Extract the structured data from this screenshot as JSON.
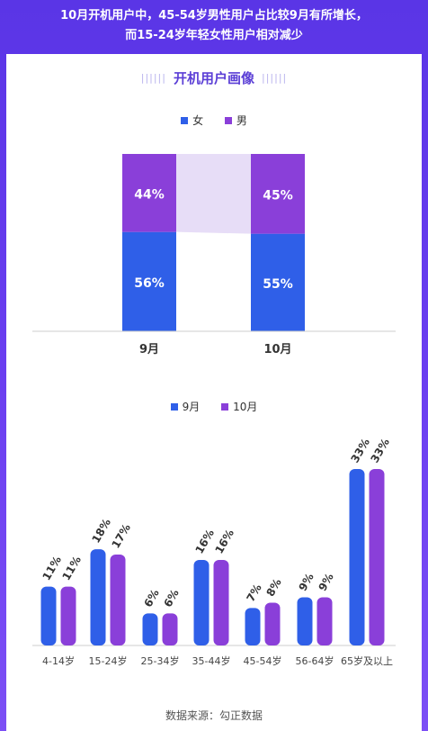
{
  "header": {
    "line1": "10月开机用户中，45-54岁男性用户占比较9月有所增长，",
    "line2": "而15-24岁年轻女性用户相对减少"
  },
  "section_title": "开机用户画像",
  "footer": "数据来源：勾正数据",
  "colors": {
    "blue": "#2f5fe8",
    "purple": "#8a3fd9",
    "band": "#e7ddf7"
  },
  "chart_data": [
    {
      "type": "bar",
      "stacked": true,
      "categories": [
        "9月",
        "10月"
      ],
      "series": [
        {
          "name": "女",
          "values": [
            56,
            55
          ],
          "labels": [
            "56%",
            "55%"
          ]
        },
        {
          "name": "男",
          "values": [
            44,
            45
          ],
          "labels": [
            "44%",
            "45%"
          ]
        }
      ],
      "ylim": [
        0,
        100
      ],
      "legend_position": "top-center"
    },
    {
      "type": "bar",
      "categories": [
        "4-14岁",
        "15-24岁",
        "25-34岁",
        "35-44岁",
        "45-54岁",
        "56-64岁",
        "65岁及以上"
      ],
      "series": [
        {
          "name": "9月",
          "values": [
            11,
            18,
            6,
            16,
            7,
            9,
            33
          ],
          "labels": [
            "11%",
            "18%",
            "6%",
            "16%",
            "7%",
            "9%",
            "33%"
          ]
        },
        {
          "name": "10月",
          "values": [
            11,
            17,
            6,
            16,
            8,
            9,
            33
          ],
          "labels": [
            "11%",
            "17%",
            "6%",
            "16%",
            "8%",
            "9%",
            "33%"
          ]
        }
      ],
      "legend_position": "top-center"
    }
  ]
}
